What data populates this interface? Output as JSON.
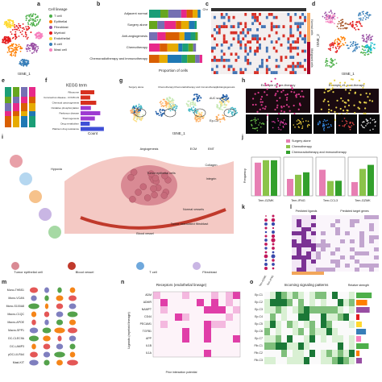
{
  "panels": {
    "letters": [
      "a",
      "b",
      "c",
      "d",
      "e",
      "f",
      "g",
      "h",
      "i",
      "j",
      "k",
      "l",
      "m",
      "n",
      "o"
    ]
  },
  "a": {
    "legend_title": "Cell lineage",
    "legend": [
      "T cell",
      "Epithelial",
      "Fibroblast",
      "Myeloid",
      "Endothelial",
      "B cell",
      "Mast cell"
    ],
    "xlabel": "tSNE_1"
  },
  "b": {
    "categories": [
      "Adjacent normal",
      "Surgery alone",
      "Anti-angiogenesis",
      "Chemotherapy",
      "Chemoradiotherapy and immunotherapy"
    ],
    "xlabel": "Proportion of cells"
  },
  "c": {
    "chr": "Chr",
    "row_labels": [
      "Normal cells",
      "Malignant cells"
    ]
  },
  "d": {
    "xlabel": "tSNE_1",
    "ylabel": "tSNE_2"
  },
  "f": {
    "title": "KEGG term",
    "xlabel": "Count",
    "terms": [
      "Ribosome",
      "Coronavirus disease - COVID-19",
      "Chemical carcinogenesis",
      "Oxidative phosphorylation",
      "Parkinson disease",
      "Thermogenesis",
      "Drug metabolism",
      "Platinum drug resistance"
    ]
  },
  "g": {
    "titles": [
      "Surgery alone",
      "Chemotherapy",
      "Chemoradiotherapy and immunotherapy",
      "Antiangiogenesis"
    ],
    "xlabel": "tSNE_1",
    "legend": "AUC score",
    "ep": "Ep-C2"
  },
  "h": {
    "titles": [
      "Example #1 pre-therapy",
      "Example #1 post-therapy"
    ]
  },
  "i": {
    "labels": [
      "Angiogenesis",
      "Tumor epithelial cells",
      "Blood vessel",
      "ECM",
      "EMT",
      "Collagen",
      "Integrin",
      "Hypoxia",
      "Normal vessels",
      "Tumor associated fibroblast",
      "Tumor epithelial cell",
      "Blood vessel",
      "T cell",
      "Fibroblast"
    ]
  },
  "j": {
    "legend": [
      "Surgery alone",
      "Chemotherapy",
      "Chemoradiotherapy and immunotherapy"
    ],
    "categories": [
      "Tem-GZMK",
      "Tem-IFNG",
      "Tem-CCL3",
      "Tem-GZMK"
    ],
    "ylabel": "Frequency"
  },
  "k": {
    "xlabels": [
      "Tem-GZMK",
      "Tem-IFNG"
    ]
  },
  "l": {
    "titles": [
      "Predicted ligands",
      "Predicted target genes"
    ]
  },
  "n": {
    "title": "Receptors (endothelial lineage)",
    "ylabel": "Ligands (myeloid lineage)",
    "rows": [
      "ADM",
      "ADMR",
      "NAMPT",
      "CD44",
      "PECAM1",
      "TGFB1",
      "APP",
      "IL1B",
      "IL1A"
    ],
    "note": "Prior interaction potential"
  },
  "o": {
    "title": "Incoming signaling patterns",
    "legend": "Relative strength",
    "rows": [
      "Ep-C1",
      "Ep-C2",
      "Ep-C3",
      "Ep-C4",
      "Ep-C5",
      "Ep-C6",
      "Ep-C7",
      "Fib-C1",
      "Fib-C2",
      "Fib-C3"
    ]
  },
  "m": {
    "rows": [
      "Mono-THBS1",
      "Mono-VCAN",
      "Mono-S100A8",
      "Macro-C1QC",
      "Macro-APOE",
      "Macro-SPP1",
      "DC-CLEC9A",
      "DC-LAMP3",
      "pDC-LILRA4",
      "Mast-KIT"
    ]
  }
}
